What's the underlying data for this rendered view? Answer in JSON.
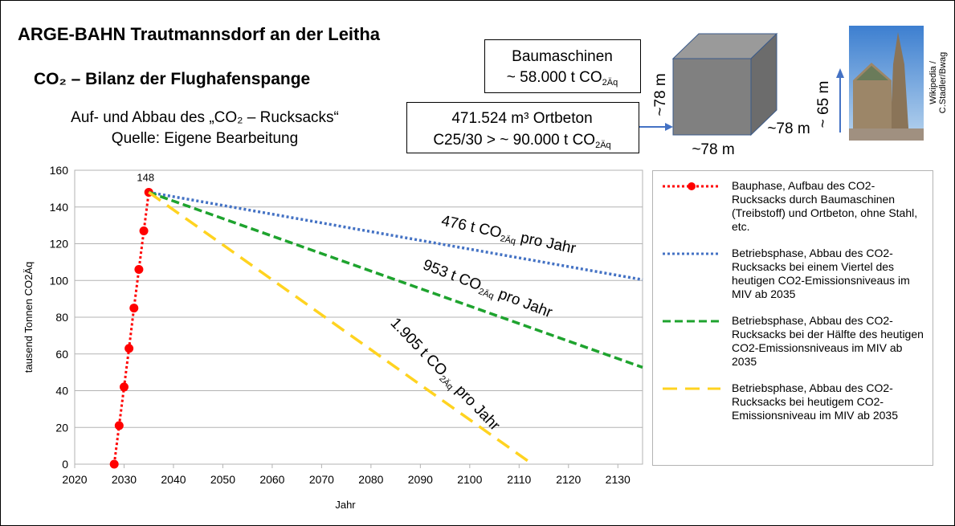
{
  "header": {
    "title": "ARGE-BAHN Trautmannsdorf an der Leitha",
    "subtitle": "CO₂ – Bilanz der Flughafenspange",
    "description": [
      "Auf- und Abbau des „CO₂ – Rucksacks“",
      "Quelle: Eigene Bearbeitung"
    ]
  },
  "info_boxes": [
    {
      "lines": [
        [
          "Baumaschinen"
        ],
        [
          "~ 58.000 t CO",
          "2Äq"
        ]
      ]
    },
    {
      "lines": [
        [
          "471.524 m³ Ortbeton"
        ],
        [
          "C25/30 > ~ 90.000 t CO",
          "2Äq"
        ]
      ]
    }
  ],
  "cube_labels": [
    "~78 m",
    "~78 m",
    "~78 m"
  ],
  "tower_label": "~ 65 m",
  "image_credit": [
    "Wikipedia /",
    "C.Stadler/Bwag"
  ],
  "chart_data": {
    "type": "line",
    "ylabel": "tausend Tonnen CO2Äq",
    "xlabel": "Jahr",
    "xlim": [
      2020,
      2135
    ],
    "ylim": [
      0,
      160
    ],
    "xticks": [
      2020,
      2030,
      2040,
      2050,
      2060,
      2070,
      2080,
      2090,
      2100,
      2110,
      2120,
      2130
    ],
    "yticks": [
      0,
      20,
      40,
      60,
      80,
      100,
      120,
      140,
      160
    ],
    "grid": true,
    "series": [
      {
        "name": "Bauphase, Aufbau des CO2-Rucksacks durch Baumaschinen (Treibstoff) und Ortbeton, ohne Stahl, etc.",
        "color": "#ff0000",
        "line_style": "dotted",
        "marker": "circle",
        "x": [
          2028,
          2029,
          2030,
          2031,
          2032,
          2033,
          2034,
          2035
        ],
        "values": [
          0,
          21,
          42,
          63,
          85,
          106,
          127,
          148
        ]
      },
      {
        "name": "Betriebsphase, Abbau des CO2-Rucksacks bei einem Viertel des heutigen CO2-Emissionsniveaus im MIV ab 2035",
        "color": "#4472c4",
        "line_style": "dotted",
        "x": [
          2035,
          2135
        ],
        "values": [
          148,
          100.4
        ]
      },
      {
        "name": "Betriebsphase, Abbau des CO2-Rucksacks bei der Hälfte des heutigen CO2-Emissionsniveaus im MIV ab 2035",
        "color": "#1ea32e",
        "line_style": "dashed",
        "x": [
          2035,
          2135
        ],
        "values": [
          148,
          52.7
        ]
      },
      {
        "name": "Betriebsphase, Abbau des CO2-Rucksacks bei heutigem CO2-Emissionsniveau im MIV ab 2035",
        "color": "#ffd320",
        "line_style": "longdash",
        "x": [
          2035,
          2112.7
        ],
        "values": [
          148,
          0
        ]
      }
    ],
    "annotations": [
      [
        "476 t CO",
        "2Äq",
        " pro Jahr"
      ],
      [
        "953 t CO",
        "2Äq",
        " pro Jahr"
      ],
      [
        "1.905 t CO",
        "2Äq",
        " pro Jahr"
      ]
    ]
  }
}
